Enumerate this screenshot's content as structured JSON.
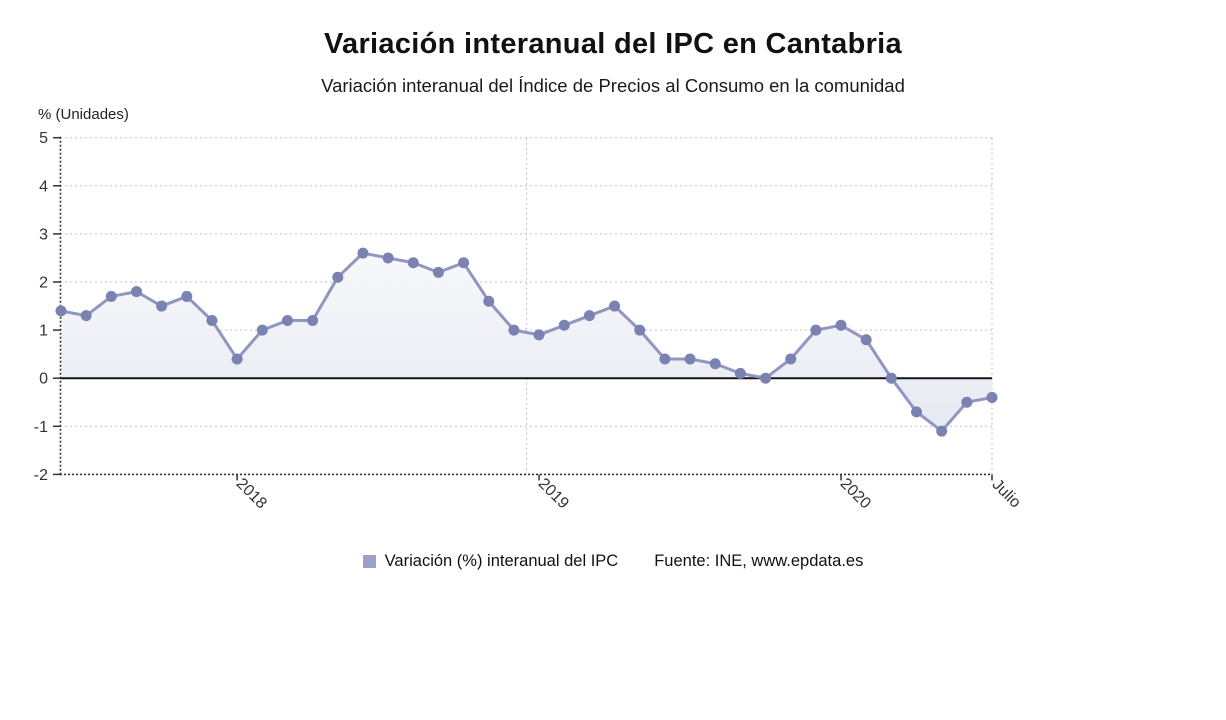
{
  "page": {
    "title": "Variación interanual del IPC en Cantabria",
    "subtitle": "Variación interanual del Índice de Precios al Consumo en la comunidad",
    "y_axis_caption": "% (Unidades)",
    "legend_label": "Variación (%) interanual del IPC",
    "source": "Fuente: INE, www.epdata.es"
  },
  "chart_data": {
    "type": "line",
    "title": "Variación interanual del IPC en Cantabria",
    "subtitle": "Variación interanual del Índice de Precios al Consumo en la comunidad",
    "ylabel": "% (Unidades)",
    "ylim": [
      -2,
      5
    ],
    "y_ticks": [
      5,
      4,
      3,
      2,
      1,
      0,
      -1,
      -2
    ],
    "grid": "dotted",
    "legend_position": "bottom",
    "x_ticks": [
      {
        "index": 7,
        "label": "2018"
      },
      {
        "index": 19,
        "label": "2019"
      },
      {
        "index": 31,
        "label": "2020"
      },
      {
        "index": 37,
        "label": "Julio"
      }
    ],
    "vgridline_positions": [
      18.5,
      37
    ],
    "series": [
      {
        "name": "Variación (%) interanual del IPC",
        "values": [
          1.4,
          1.3,
          1.7,
          1.8,
          1.5,
          1.7,
          1.2,
          0.4,
          1.0,
          1.2,
          1.2,
          2.1,
          2.6,
          2.5,
          2.4,
          2.2,
          2.4,
          1.6,
          1.0,
          0.9,
          1.1,
          1.3,
          1.5,
          1.0,
          0.4,
          0.4,
          0.3,
          0.1,
          0.0,
          0.4,
          1.0,
          1.1,
          0.8,
          0.0,
          -0.7,
          -1.1,
          -0.5,
          -0.4
        ]
      }
    ],
    "source": "Fuente: INE, www.epdata.es",
    "colors": {
      "marker": "#7a82b2",
      "line": "#9096c0",
      "area_top": "#f7f8fb",
      "area_bottom": "#e4e8f1",
      "legend_square": "#99a0ca",
      "zero_line": "#141414",
      "grid": "#c2c2c2",
      "axis": "#333333",
      "tick_text": "#333333"
    }
  }
}
